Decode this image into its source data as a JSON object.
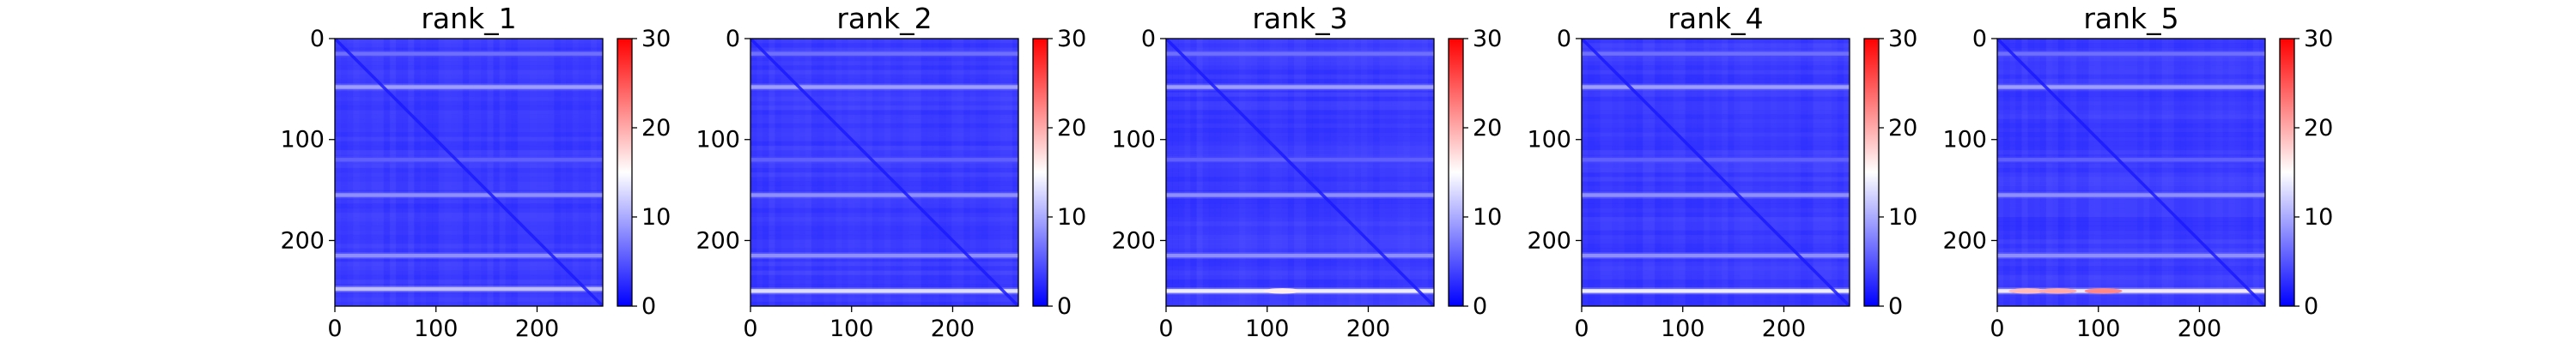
{
  "chart_data": [
    {
      "type": "heatmap",
      "title": "rank_1",
      "xlim": [
        0,
        265
      ],
      "ylim": [
        265,
        0
      ],
      "x_ticks": [
        "0",
        "100",
        "200"
      ],
      "y_ticks": [
        "0",
        "100",
        "200"
      ],
      "colorbar": {
        "range": [
          0,
          30
        ],
        "ticks": [
          "0",
          "10",
          "20",
          "30"
        ],
        "colors": [
          "#0000ff",
          "#ffffff",
          "#ff0000"
        ]
      },
      "base_value": 3.5,
      "row_bands": [
        {
          "row": 15,
          "value": 7
        },
        {
          "row": 48,
          "value": 10
        },
        {
          "row": 120,
          "value": 6
        },
        {
          "row": 155,
          "value": 9
        },
        {
          "row": 215,
          "value": 9
        },
        {
          "row": 248,
          "value": 12
        }
      ],
      "diagonal_value": 1.5,
      "hotspots": []
    },
    {
      "type": "heatmap",
      "title": "rank_2",
      "xlim": [
        0,
        265
      ],
      "ylim": [
        265,
        0
      ],
      "x_ticks": [
        "0",
        "100",
        "200"
      ],
      "y_ticks": [
        "0",
        "100",
        "200"
      ],
      "colorbar": {
        "range": [
          0,
          30
        ],
        "ticks": [
          "0",
          "10",
          "20",
          "30"
        ],
        "colors": [
          "#0000ff",
          "#ffffff",
          "#ff0000"
        ]
      },
      "base_value": 3.5,
      "row_bands": [
        {
          "row": 15,
          "value": 7
        },
        {
          "row": 48,
          "value": 10
        },
        {
          "row": 120,
          "value": 6
        },
        {
          "row": 155,
          "value": 9
        },
        {
          "row": 215,
          "value": 9
        },
        {
          "row": 250,
          "value": 14
        }
      ],
      "diagonal_value": 1.5,
      "hotspots": []
    },
    {
      "type": "heatmap",
      "title": "rank_3",
      "xlim": [
        0,
        265
      ],
      "ylim": [
        265,
        0
      ],
      "x_ticks": [
        "0",
        "100",
        "200"
      ],
      "y_ticks": [
        "0",
        "100",
        "200"
      ],
      "colorbar": {
        "range": [
          0,
          30
        ],
        "ticks": [
          "0",
          "10",
          "20",
          "30"
        ],
        "colors": [
          "#0000ff",
          "#ffffff",
          "#ff0000"
        ]
      },
      "base_value": 3.5,
      "row_bands": [
        {
          "row": 15,
          "value": 7
        },
        {
          "row": 48,
          "value": 10
        },
        {
          "row": 120,
          "value": 6
        },
        {
          "row": 155,
          "value": 9
        },
        {
          "row": 215,
          "value": 9
        },
        {
          "row": 250,
          "value": 15
        }
      ],
      "diagonal_value": 1.5,
      "hotspots": [
        {
          "x": 115,
          "y": 250,
          "value": 16
        }
      ]
    },
    {
      "type": "heatmap",
      "title": "rank_4",
      "xlim": [
        0,
        265
      ],
      "ylim": [
        265,
        0
      ],
      "x_ticks": [
        "0",
        "100",
        "200"
      ],
      "y_ticks": [
        "0",
        "100",
        "200"
      ],
      "colorbar": {
        "range": [
          0,
          30
        ],
        "ticks": [
          "0",
          "10",
          "20",
          "30"
        ],
        "colors": [
          "#0000ff",
          "#ffffff",
          "#ff0000"
        ]
      },
      "base_value": 3.5,
      "row_bands": [
        {
          "row": 15,
          "value": 7
        },
        {
          "row": 48,
          "value": 10
        },
        {
          "row": 120,
          "value": 6
        },
        {
          "row": 155,
          "value": 9
        },
        {
          "row": 215,
          "value": 9
        },
        {
          "row": 250,
          "value": 15
        }
      ],
      "diagonal_value": 1.5,
      "hotspots": []
    },
    {
      "type": "heatmap",
      "title": "rank_5",
      "xlim": [
        0,
        265
      ],
      "ylim": [
        265,
        0
      ],
      "x_ticks": [
        "0",
        "100",
        "200"
      ],
      "y_ticks": [
        "0",
        "100",
        "200"
      ],
      "colorbar": {
        "range": [
          0,
          30
        ],
        "ticks": [
          "0",
          "10",
          "20",
          "30"
        ],
        "colors": [
          "#0000ff",
          "#ffffff",
          "#ff0000"
        ]
      },
      "base_value": 3.5,
      "row_bands": [
        {
          "row": 15,
          "value": 7
        },
        {
          "row": 48,
          "value": 10
        },
        {
          "row": 120,
          "value": 6
        },
        {
          "row": 155,
          "value": 9
        },
        {
          "row": 215,
          "value": 9
        },
        {
          "row": 250,
          "value": 16
        }
      ],
      "diagonal_value": 1.5,
      "hotspots": [
        {
          "x": 30,
          "y": 250,
          "value": 19
        },
        {
          "x": 60,
          "y": 250,
          "value": 20
        },
        {
          "x": 105,
          "y": 250,
          "value": 22
        }
      ]
    }
  ]
}
